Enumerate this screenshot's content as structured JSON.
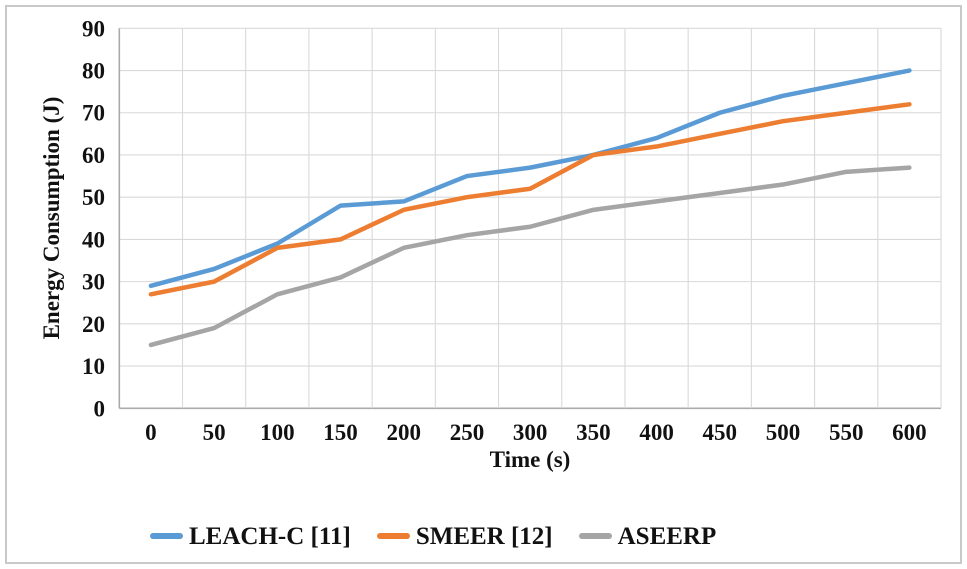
{
  "chart_data": {
    "type": "line",
    "title": "",
    "xlabel": "Time (s)",
    "ylabel": "Energy Consumption (J)",
    "categories": [
      0,
      50,
      100,
      150,
      200,
      250,
      300,
      350,
      400,
      450,
      500,
      550,
      600
    ],
    "ylim": [
      0,
      90
    ],
    "ytick_step": 10,
    "grid": true,
    "legend_position": "bottom",
    "series": [
      {
        "name": "LEACH-C [11]",
        "color": "#5B9BD5",
        "values": [
          29,
          33,
          39,
          48,
          49,
          55,
          57,
          60,
          64,
          70,
          74,
          77,
          80
        ]
      },
      {
        "name": "SMEER [12]",
        "color": "#ED7D31",
        "values": [
          27,
          30,
          38,
          40,
          47,
          50,
          52,
          60,
          62,
          65,
          68,
          70,
          72
        ]
      },
      {
        "name": "ASEERP",
        "color": "#A5A5A5",
        "values": [
          15,
          19,
          27,
          31,
          38,
          41,
          43,
          47,
          49,
          51,
          53,
          56,
          57
        ]
      }
    ],
    "colors": {
      "gridline": "#D9D9D9",
      "axis": "#ABABAB",
      "frame": "#C9C9C9",
      "text": "#111111"
    }
  }
}
